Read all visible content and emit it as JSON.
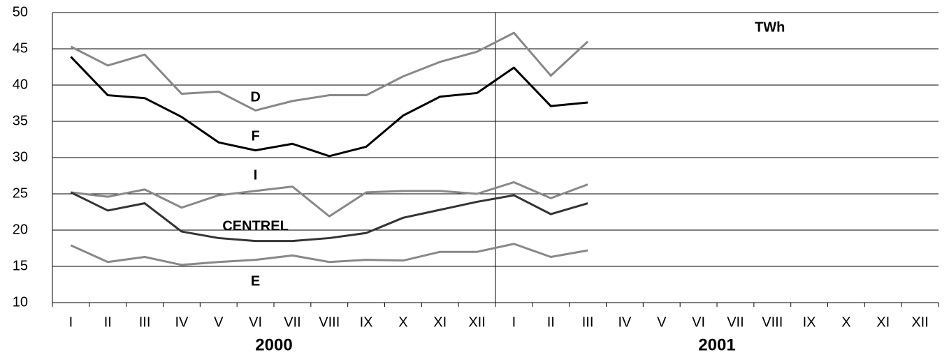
{
  "chart_data": {
    "type": "line",
    "annotation": "TWh",
    "categories": [
      "I",
      "II",
      "III",
      "IV",
      "V",
      "VI",
      "VII",
      "VIII",
      "IX",
      "X",
      "XI",
      "XII",
      "I",
      "II",
      "III",
      "IV",
      "V",
      "VI",
      "VII",
      "VIII",
      "IX",
      "X",
      "XI",
      "XII"
    ],
    "year_labels": [
      "2000",
      "2001"
    ],
    "series": [
      {
        "name": "D",
        "color": "#888888",
        "values": [
          45.3,
          42.7,
          44.2,
          38.8,
          39.1,
          36.5,
          37.8,
          38.6,
          38.6,
          41.2,
          43.2,
          44.6,
          47.2,
          41.3,
          46.0,
          null,
          null,
          null,
          null,
          null,
          null,
          null,
          null,
          null
        ]
      },
      {
        "name": "F",
        "color": "#000000",
        "values": [
          43.9,
          38.6,
          38.2,
          35.6,
          32.1,
          31.0,
          31.9,
          30.2,
          31.5,
          35.8,
          38.4,
          38.9,
          42.4,
          37.1,
          37.6,
          null,
          null,
          null,
          null,
          null,
          null,
          null,
          null,
          null
        ]
      },
      {
        "name": "I",
        "color": "#888888",
        "values": [
          25.2,
          24.6,
          25.6,
          23.1,
          24.8,
          25.4,
          26.0,
          21.9,
          25.2,
          25.4,
          25.4,
          25.0,
          26.6,
          24.4,
          26.3,
          null,
          null,
          null,
          null,
          null,
          null,
          null,
          null,
          null
        ]
      },
      {
        "name": "CENTREL",
        "color": "#333333",
        "values": [
          25.2,
          22.7,
          23.7,
          19.8,
          18.9,
          18.5,
          18.5,
          18.9,
          19.6,
          21.7,
          22.8,
          23.9,
          24.8,
          22.2,
          23.7,
          null,
          null,
          null,
          null,
          null,
          null,
          null,
          null,
          null
        ]
      },
      {
        "name": "E",
        "color": "#888888",
        "values": [
          17.9,
          15.6,
          16.3,
          15.2,
          15.6,
          15.9,
          16.5,
          15.6,
          15.9,
          15.8,
          17.0,
          17.0,
          18.1,
          16.3,
          17.2,
          null,
          null,
          null,
          null,
          null,
          null,
          null,
          null,
          null
        ]
      }
    ],
    "ylim": [
      10,
      50
    ],
    "yticks": [
      10,
      15,
      20,
      25,
      30,
      35,
      40,
      45,
      50
    ],
    "grid": true
  }
}
